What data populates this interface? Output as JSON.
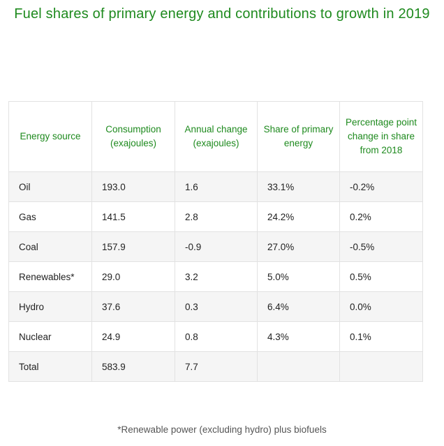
{
  "title": "Fuel shares of primary energy and contributions to growth in 2019",
  "table": {
    "headers": [
      "Energy source",
      "Consumption (exajoules)",
      "Annual change (exajoules)",
      "Share of primary energy",
      "Percentage point change in share from 2018"
    ],
    "rows": [
      [
        "Oil",
        "193.0",
        "1.6",
        "33.1%",
        "-0.2%"
      ],
      [
        "Gas",
        "141.5",
        "2.8",
        "24.2%",
        "0.2%"
      ],
      [
        "Coal",
        "157.9",
        "-0.9",
        "27.0%",
        "-0.5%"
      ],
      [
        "Renewables*",
        "29.0",
        "3.2",
        "5.0%",
        "0.5%"
      ],
      [
        "Hydro",
        "37.6",
        "0.3",
        "6.4%",
        "0.0%"
      ],
      [
        "Nuclear",
        "24.9",
        "0.8",
        "4.3%",
        "0.1%"
      ],
      [
        "Total",
        "583.9",
        "7.7",
        "",
        ""
      ]
    ]
  },
  "footnote": "*Renewable power (excluding hydro) plus biofuels",
  "colors": {
    "title": "#1e8a1e",
    "header_text": "#1e8a1e",
    "row_stripe": "#f5f5f5",
    "border": "#e2e2e2"
  }
}
